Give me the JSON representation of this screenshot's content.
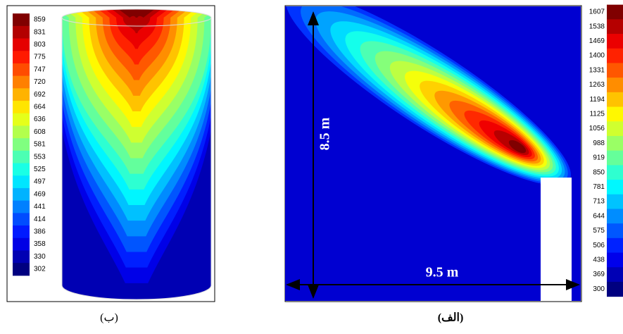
{
  "panel_b": {
    "colorbar_labels": [
      859,
      831,
      803,
      775,
      747,
      720,
      692,
      664,
      636,
      608,
      581,
      553,
      525,
      497,
      469,
      441,
      414,
      386,
      358,
      330,
      302
    ],
    "caption": "(ب)"
  },
  "panel_a": {
    "colorbar_labels": [
      1607,
      1538,
      1469,
      1400,
      1331,
      1263,
      1194,
      1125,
      1056,
      988,
      919,
      850,
      781,
      713,
      644,
      575,
      506,
      438,
      369,
      300
    ],
    "height_label": "8.5 m",
    "width_label": "9.5 m",
    "caption": "(الف)"
  }
}
